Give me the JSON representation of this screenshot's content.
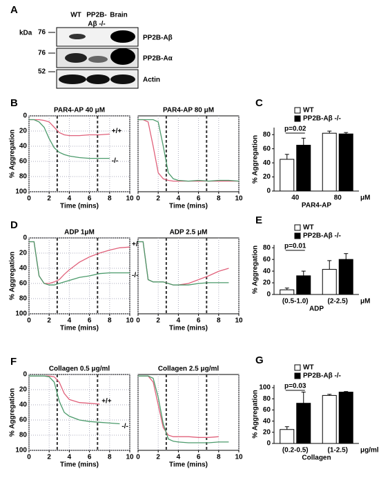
{
  "blot": {
    "label": "A",
    "unit": "kDa",
    "lanes": [
      [
        "WT"
      ],
      [
        "PP2B-",
        "Aβ -/-"
      ],
      [
        "Brain"
      ]
    ],
    "rows": [
      {
        "marker": 76,
        "label": "PP2B-Aβ"
      },
      {
        "marker": 76,
        "label": "PP2B-Aα"
      },
      {
        "marker": 52,
        "label": "Actin"
      }
    ]
  },
  "chart_data": [
    {
      "type": "line",
      "label": "B",
      "title": "PAR4-AP 40 μM",
      "xlabel": "Time (mins)",
      "ylabel": "% Aggregation",
      "x": [
        0,
        0.5,
        1,
        1.5,
        2,
        2.5,
        3,
        3.5,
        4,
        5,
        6,
        7,
        8,
        9,
        10
      ],
      "xlim": [
        0,
        10
      ],
      "xticks": [
        0,
        2,
        4,
        6,
        8,
        10
      ],
      "ylim": [
        100,
        0
      ],
      "yticks": [
        0,
        20,
        40,
        60,
        80,
        100
      ],
      "event_lines": [
        2.8,
        6.8
      ],
      "grid": true,
      "series": [
        {
          "name": "+/+",
          "color": "#e0607a",
          "values": [
            5,
            5,
            5,
            6,
            8,
            15,
            22,
            25,
            26,
            26,
            25,
            25,
            24,
            null,
            null
          ]
        },
        {
          "name": "-/-",
          "color": "#4a9a6a",
          "values": [
            5,
            5,
            8,
            15,
            30,
            42,
            48,
            51,
            53,
            55,
            56,
            56,
            56,
            null,
            null
          ]
        }
      ]
    },
    {
      "type": "line",
      "title": "PAR4-AP 80 μM",
      "xlabel": "Time (mins)",
      "x": [
        0,
        0.5,
        1,
        1.5,
        2,
        2.5,
        3,
        3.5,
        4,
        5,
        6,
        7,
        8,
        9,
        10
      ],
      "xlim": [
        0,
        10
      ],
      "xticks": [
        0,
        2,
        4,
        6,
        8,
        10
      ],
      "ylim": [
        100,
        0
      ],
      "event_lines": [
        2.8,
        6.8
      ],
      "grid": true,
      "series": [
        {
          "color": "#e0607a",
          "values": [
            5,
            5,
            8,
            40,
            75,
            83,
            85,
            86,
            86,
            86,
            86,
            86,
            86,
            86,
            86
          ]
        },
        {
          "color": "#4a9a6a",
          "values": [
            5,
            5,
            5,
            5,
            8,
            40,
            75,
            83,
            85,
            86,
            85,
            86,
            85,
            85,
            86
          ]
        }
      ]
    },
    {
      "type": "bar",
      "label": "C",
      "ylabel": "% Aggregation",
      "xlabel": "PAR4-AP",
      "unit": "μM",
      "annotation": "p=0.02",
      "categories": [
        "40",
        "80"
      ],
      "ylim": [
        0,
        90
      ],
      "yticks": [
        0,
        20,
        40,
        60,
        80
      ],
      "series": [
        {
          "name": "WT",
          "color": "#ffffff",
          "values": [
            45,
            82
          ],
          "errors": [
            7,
            3
          ]
        },
        {
          "name": "PP2B-Aβ -/-",
          "color": "#000000",
          "values": [
            65,
            81
          ],
          "errors": [
            10,
            2
          ]
        }
      ]
    },
    {
      "type": "line",
      "label": "D",
      "title": "ADP 1μM",
      "xlabel": "Time (mins)",
      "ylabel": "% Aggregation",
      "x": [
        0,
        0.5,
        1,
        1.5,
        2,
        2.5,
        3,
        3.5,
        4,
        5,
        6,
        7,
        8,
        9,
        10
      ],
      "xlim": [
        0,
        10
      ],
      "xticks": [
        0,
        2,
        4,
        6,
        8,
        10
      ],
      "ylim": [
        100,
        0
      ],
      "yticks": [
        0,
        20,
        40,
        60,
        80,
        100
      ],
      "event_lines": [
        2.8,
        6.8
      ],
      "grid": true,
      "series": [
        {
          "name": "+/+",
          "color": "#e0607a",
          "values": [
            5,
            5,
            50,
            60,
            60,
            58,
            55,
            48,
            42,
            32,
            25,
            20,
            16,
            13,
            12
          ]
        },
        {
          "name": "-/-",
          "color": "#4a9a6a",
          "values": [
            5,
            5,
            50,
            60,
            62,
            62,
            60,
            58,
            56,
            52,
            50,
            47,
            46,
            46,
            46
          ]
        }
      ]
    },
    {
      "type": "line",
      "title": "ADP 2.5 μM",
      "xlabel": "Time (mins)",
      "x": [
        0,
        0.5,
        1,
        1.5,
        2,
        2.5,
        3,
        3.5,
        4,
        5,
        6,
        7,
        8,
        9,
        10
      ],
      "xlim": [
        0,
        10
      ],
      "xticks": [
        0,
        2,
        4,
        6,
        8,
        10
      ],
      "ylim": [
        100,
        0
      ],
      "event_lines": [
        2.8,
        6.8
      ],
      "grid": true,
      "series": [
        {
          "color": "#e0607a",
          "values": [
            5,
            5,
            55,
            58,
            58,
            58,
            60,
            62,
            62,
            60,
            55,
            50,
            44,
            40,
            null
          ]
        },
        {
          "color": "#4a9a6a",
          "values": [
            5,
            5,
            55,
            58,
            58,
            58,
            60,
            62,
            62,
            62,
            60,
            59,
            59,
            59,
            null
          ]
        }
      ]
    },
    {
      "type": "bar",
      "label": "E",
      "ylabel": "% Aggregation",
      "xlabel": "ADP",
      "unit": "μM",
      "annotation": "p=0.01",
      "categories": [
        "(0.5-1.0)",
        "(2-2.5)"
      ],
      "ylim": [
        0,
        85
      ],
      "yticks": [
        0,
        20,
        40,
        60,
        80
      ],
      "series": [
        {
          "name": "WT",
          "color": "#ffffff",
          "values": [
            8,
            43
          ],
          "errors": [
            3,
            15
          ]
        },
        {
          "name": "PP2B-Aβ -/-",
          "color": "#000000",
          "values": [
            32,
            60
          ],
          "errors": [
            8,
            10
          ]
        }
      ]
    },
    {
      "type": "line",
      "label": "F",
      "title": "Collagen 0.5 μg/ml",
      "xlabel": "Time (mins)",
      "ylabel": "% Aggregation",
      "x": [
        0,
        0.5,
        1,
        1.5,
        2,
        2.5,
        3,
        3.5,
        4,
        5,
        6,
        7,
        8,
        9,
        10
      ],
      "xlim": [
        0,
        10
      ],
      "xticks": [
        0,
        2,
        4,
        6,
        8,
        10
      ],
      "ylim": [
        100,
        0
      ],
      "yticks": [
        0,
        20,
        40,
        60,
        80,
        100
      ],
      "event_lines": [
        2.8,
        6.8
      ],
      "grid": true,
      "series": [
        {
          "name": "+/+",
          "color": "#e0607a",
          "values": [
            2,
            2,
            2,
            2,
            2,
            3,
            10,
            25,
            33,
            37,
            38,
            39,
            null,
            null,
            null
          ]
        },
        {
          "name": "-/-",
          "color": "#4a9a6a",
          "values": [
            2,
            2,
            2,
            2,
            3,
            10,
            35,
            50,
            55,
            60,
            62,
            63,
            64,
            65,
            null
          ]
        }
      ]
    },
    {
      "type": "line",
      "title": "Collagen 2.5 μg/ml",
      "xlabel": "Time (mins)",
      "x": [
        0,
        0.5,
        1,
        1.5,
        2,
        2.5,
        3,
        3.5,
        4,
        5,
        6,
        7,
        8,
        9,
        10
      ],
      "xlim": [
        0,
        10
      ],
      "xticks": [
        0,
        2,
        4,
        6,
        8,
        10
      ],
      "ylim": [
        100,
        0
      ],
      "event_lines": [
        2.8,
        6.8
      ],
      "grid": true,
      "series": [
        {
          "color": "#e0607a",
          "values": [
            2,
            2,
            2,
            10,
            40,
            70,
            80,
            82,
            82,
            82,
            83,
            83,
            82,
            null,
            null
          ]
        },
        {
          "color": "#4a9a6a",
          "values": [
            2,
            2,
            2,
            5,
            30,
            65,
            85,
            88,
            89,
            90,
            90,
            90,
            89,
            89,
            null
          ]
        }
      ]
    },
    {
      "type": "bar",
      "label": "G",
      "ylabel": "% Aggregation",
      "xlabel": "Collagen",
      "unit": "μg/ml",
      "annotation": "p=0.03",
      "categories": [
        "(0.2-0.5)",
        "(1-2.5)"
      ],
      "ylim": [
        0,
        105
      ],
      "yticks": [
        0,
        20,
        40,
        60,
        80,
        100
      ],
      "series": [
        {
          "name": "WT",
          "color": "#ffffff",
          "values": [
            25,
            86
          ],
          "errors": [
            5,
            2
          ]
        },
        {
          "name": "PP2B-Aβ -/-",
          "color": "#000000",
          "values": [
            72,
            92
          ],
          "errors": [
            20,
            1
          ]
        }
      ]
    }
  ]
}
